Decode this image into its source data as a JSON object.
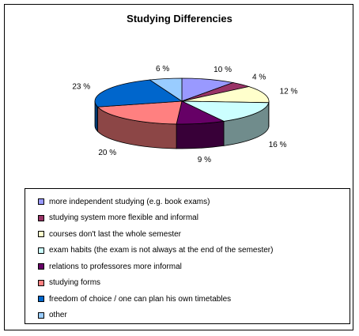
{
  "chart_data": {
    "type": "pie",
    "title": "Studying Differencies",
    "legend_position": "bottom",
    "categories": [
      "more independent studying (e.g. book exams)",
      "studying system more flexible and informal",
      "courses don't last the whole semester",
      "exam habits (the exam is not always at the end of the semester)",
      "relations to professores more informal",
      "studying forms",
      "freedom of choice / one can plan his own timetables",
      "other"
    ],
    "values": [
      10,
      4,
      12,
      16,
      9,
      20,
      23,
      6
    ],
    "labels": [
      "10 %",
      "4 %",
      "12 %",
      "16 %",
      "9 %",
      "20 %",
      "23 %",
      "6 %"
    ],
    "colors": [
      "#9999FF",
      "#993366",
      "#FFFFCC",
      "#CCFFFF",
      "#660066",
      "#FF8080",
      "#0066CC",
      "#99CCFF"
    ]
  }
}
